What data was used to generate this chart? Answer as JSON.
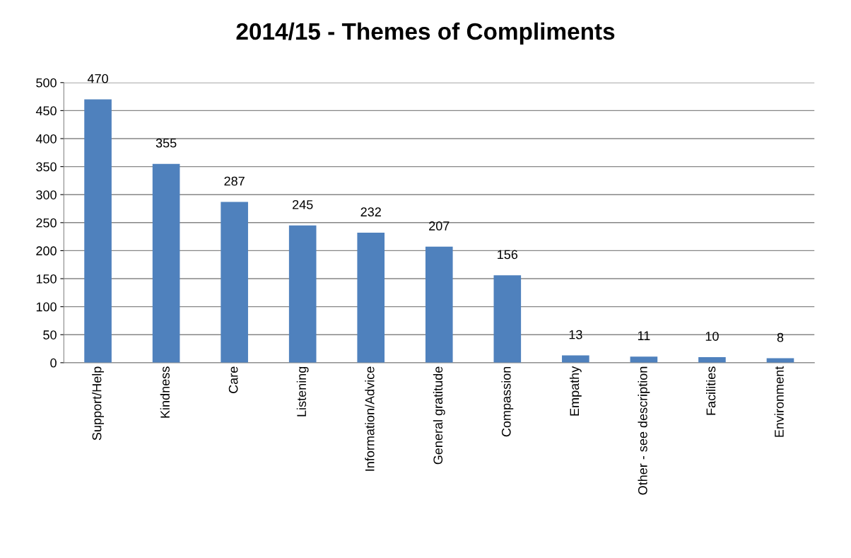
{
  "chart_data": {
    "type": "bar",
    "title": "2014/15 - Themes of Compliments",
    "categories": [
      "Support/Help",
      "Kindness",
      "Care",
      "Listening",
      "Information/Advice",
      "General gratitude",
      "Compassion",
      "Empathy",
      "Other - see description",
      "Facilities",
      "Environment"
    ],
    "values": [
      470,
      355,
      287,
      245,
      232,
      207,
      156,
      13,
      11,
      10,
      8
    ],
    "color": "#4f81bd",
    "ylim": [
      0,
      500
    ],
    "yticks": [
      0,
      50,
      100,
      150,
      200,
      250,
      300,
      350,
      400,
      450,
      500
    ],
    "grid": "y",
    "data_labels": true
  }
}
